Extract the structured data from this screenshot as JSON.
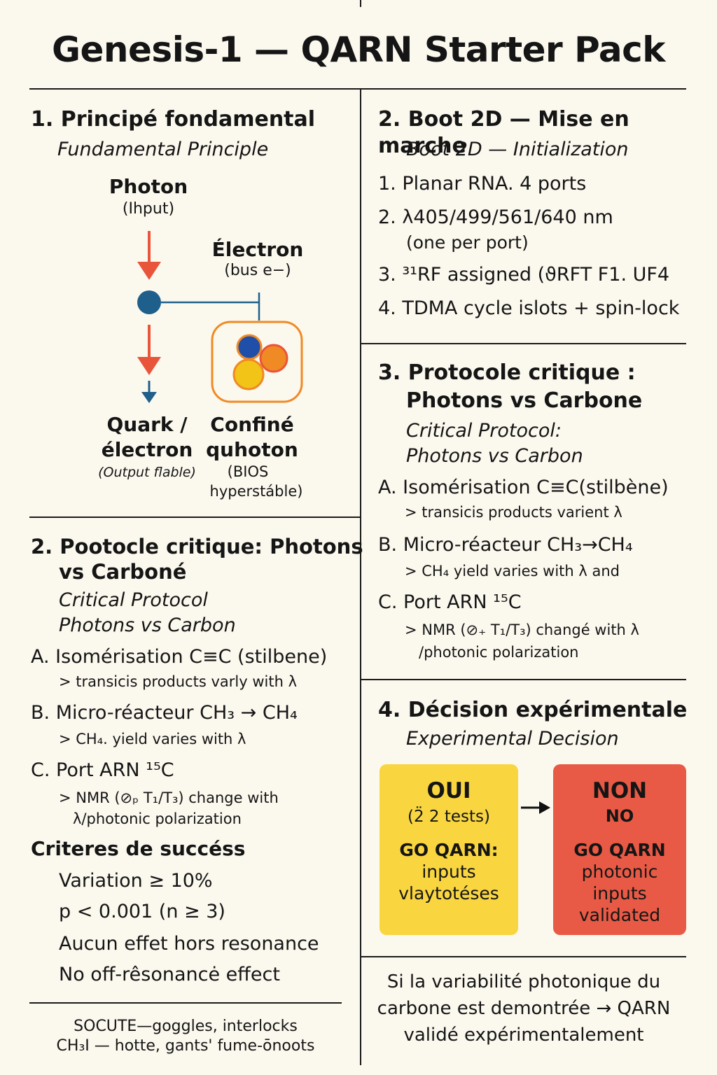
{
  "title": "Genesis-1 — QARN Starter Pack",
  "sec1": {
    "heading": "1. Principé fondamental",
    "subtitle": "Fundamental Principle",
    "photon_label": "Photon",
    "photon_note": "(Ihput)",
    "electron_label": "Électron",
    "electron_note": "(bus e−)",
    "quark_line1": "Quark /",
    "quark_line2": "électron",
    "quark_note": "(Output flable)",
    "confine_line1": "Confiné",
    "confine_line2": "quhoton",
    "confine_note1": "(BIOS",
    "confine_note2": "hyperstáble)",
    "colors": {
      "arrow": "#e8553a",
      "node": "#1f5f8b",
      "frame": "#f08a24",
      "blue": "#1f4fa8",
      "orange": "#f08a24",
      "yellow": "#f2c418"
    }
  },
  "sec2l": {
    "heading_line1": "2. Pootocle critique: Photons",
    "heading_line2": "vs Carboné",
    "subtitle_line1": "Critical Protocol",
    "subtitle_line2": "Photons vs Carbon",
    "a_item": "A. Isomérisation C≡C (stilbene)",
    "a_note": "> transicis products varly with λ",
    "b_item": "B. Micro-réacteur CH₃ → CH₄",
    "b_note": "> CH₄. yield varies with λ",
    "c_item": "C. Port ARN ¹⁵C",
    "c_note1": "> NMR (⊘ₚ T₁/T₃) change with",
    "c_note2": "λ/photonic polarization"
  },
  "criteria": {
    "heading": "Criteres de succéss",
    "line1": "Variation ≥ 10%",
    "line2": "p < 0.001 (n ≥ 3)",
    "line3": "Aucun effet hors resonance",
    "line4": "No off-rêsonancė effect"
  },
  "safety": {
    "line1": "SOCUTE—goggles, interlocks",
    "line2": "CH₃I — hotte, gants' fume-ōnoots"
  },
  "sec2r": {
    "heading": "2. Boot 2D — Mise en marche",
    "subtitle": "Boot 2D — Initialization",
    "item1": "1. Planar RNA. 4 ports",
    "item2": "2. λ405/499/561/640 nm",
    "item2_note": "(one per port)",
    "item3": "3. ³¹RF assigned (ϑRFT F1. UF4",
    "item4": "4. TDMA cycle islots + spin-lock"
  },
  "sec3r": {
    "heading_line1": "3. Protocole critique :",
    "heading_line2": "Photons vs Carbone",
    "subtitle_line1": "Critical Protocol:",
    "subtitle_line2": "Photons vs Carbon",
    "a_item": "A. Isomérisation C≡C(stilbène)",
    "a_note": "> transicis products varient λ",
    "b_item": "B. Micro-réacteur CH₃→CH₄",
    "b_note": "> CH₄ yield varies with λ and",
    "c_item": "C. Port ARN ¹⁵C",
    "c_note1": "> NMR (⊘₊ T₁/T₃) changé with λ",
    "c_note2": "/photonic polarization"
  },
  "sec4r": {
    "heading": "4. Décision expérimentale",
    "subtitle": "Experimental Decision",
    "oui": {
      "label": "OUI",
      "count": "(2̈ 2 tests)",
      "go": "GO QARN:",
      "line1": "inputs",
      "line2": "vlaytotéses",
      "color": "#f9d640"
    },
    "non": {
      "label": "NON",
      "label2": "NO",
      "go": "GO QARN",
      "line1": "photonic",
      "line2": "inputs",
      "line3": "validated",
      "color": "#e85a45"
    }
  },
  "conclusion": {
    "line1": "Si la variabilité photonique du",
    "line2": "carbone est demontrée → QARN",
    "line3": "validé expérimentalement"
  }
}
